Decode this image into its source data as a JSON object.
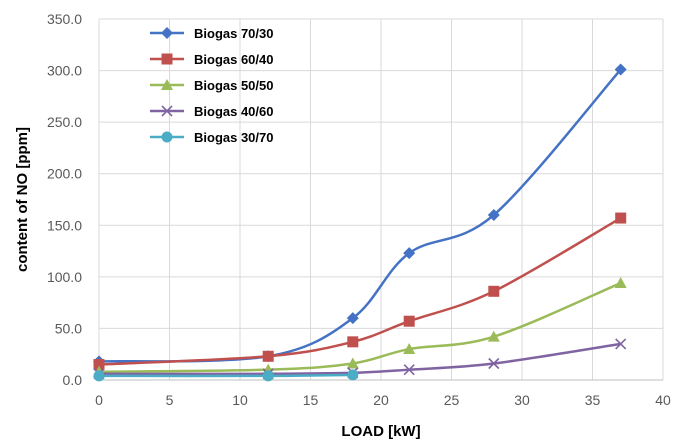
{
  "chart_data": {
    "type": "line",
    "title": "",
    "xlabel": "LOAD [kW]",
    "ylabel": "content of NO [ppm]",
    "xlim": [
      0,
      40
    ],
    "ylim": [
      0,
      350
    ],
    "x_ticks": [
      0,
      5,
      10,
      15,
      20,
      25,
      30,
      35,
      40
    ],
    "y_ticks": [
      0,
      50,
      100,
      150,
      200,
      250,
      300,
      350
    ],
    "x_tick_labels": [
      "0",
      "5",
      "10",
      "15",
      "20",
      "25",
      "30",
      "35",
      "40"
    ],
    "y_tick_labels": [
      "0.0",
      "50.0",
      "100.0",
      "150.0",
      "200.0",
      "250.0",
      "300.0",
      "350.0"
    ],
    "grid": true,
    "legend_position": "top-left",
    "series": [
      {
        "name": "Biogas 70/30",
        "color": "#4472C4",
        "marker": "diamond",
        "x": [
          0,
          12,
          18,
          22,
          28,
          37
        ],
        "y": [
          18,
          23,
          60,
          123,
          160,
          301
        ]
      },
      {
        "name": "Biogas 60/40",
        "color": "#C0504D",
        "marker": "square",
        "x": [
          0,
          12,
          18,
          22,
          28,
          37
        ],
        "y": [
          15,
          23,
          37,
          57,
          86,
          157
        ]
      },
      {
        "name": "Biogas 50/50",
        "color": "#9BBB59",
        "marker": "triangle",
        "x": [
          0,
          12,
          18,
          22,
          28,
          37
        ],
        "y": [
          8,
          10,
          16,
          30,
          42,
          94
        ]
      },
      {
        "name": "Biogas 40/60",
        "color": "#8064A2",
        "marker": "x",
        "x": [
          0,
          12,
          18,
          22,
          28,
          37
        ],
        "y": [
          6,
          6,
          7,
          10,
          16,
          35
        ]
      },
      {
        "name": "Biogas 30/70",
        "color": "#4BACC6",
        "marker": "circle",
        "x": [
          0,
          12,
          18
        ],
        "y": [
          4,
          4,
          5
        ]
      }
    ]
  }
}
